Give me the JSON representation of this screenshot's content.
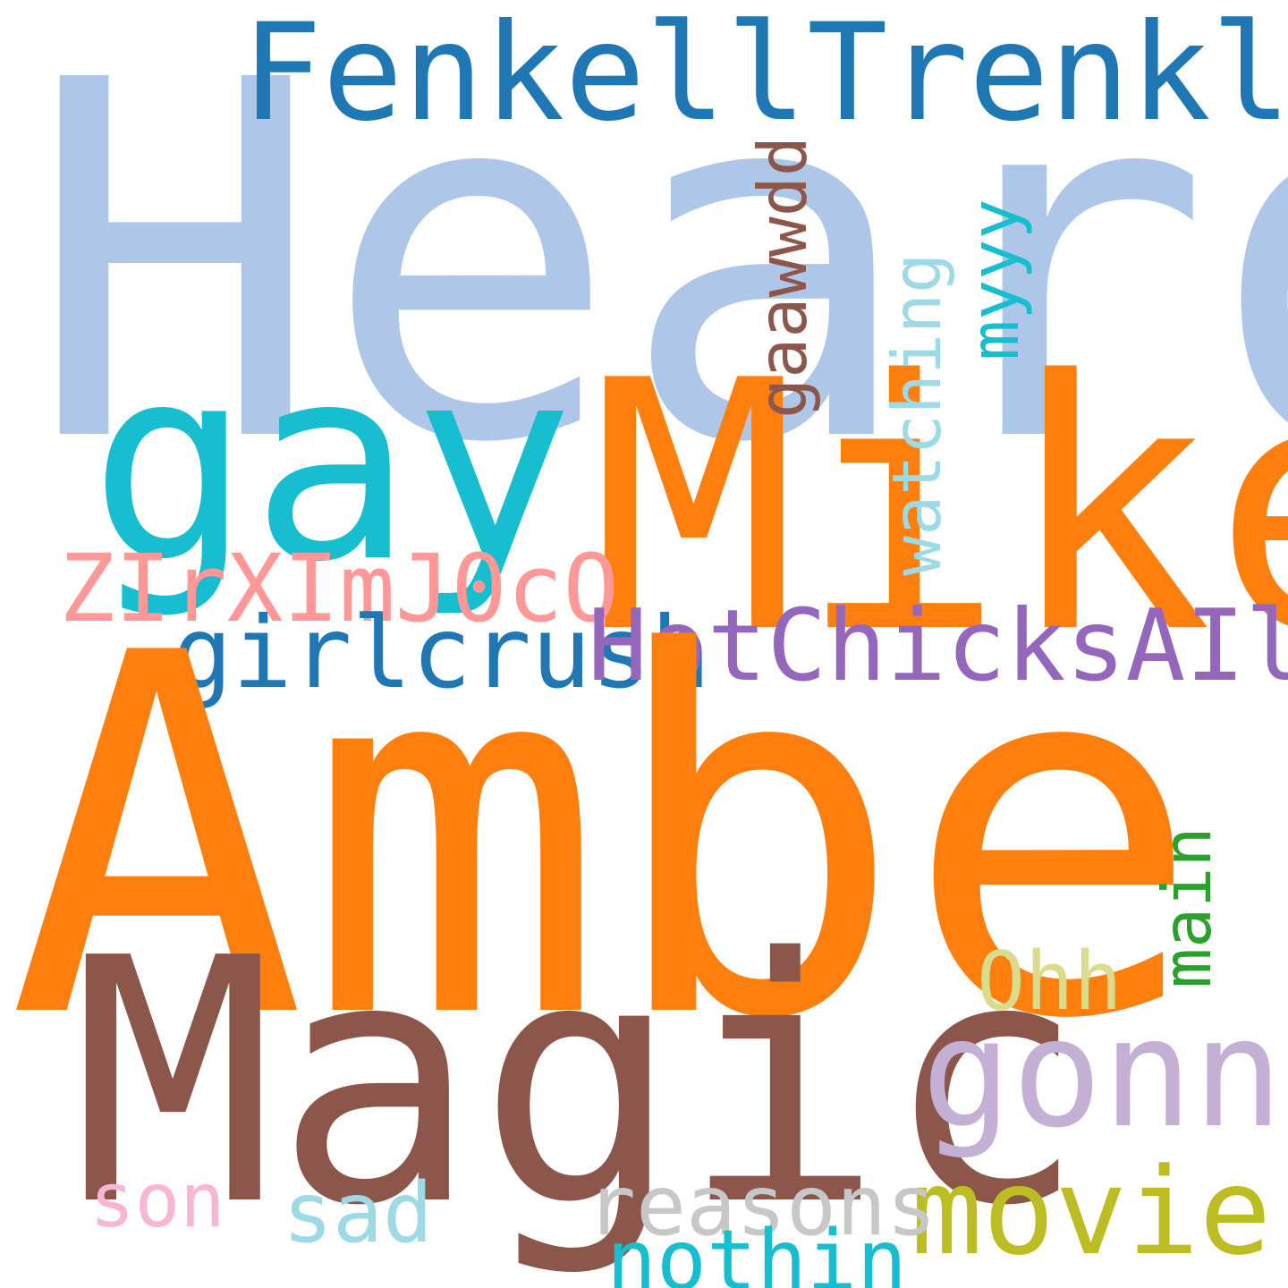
{
  "word_cloud": {
    "background": "#ffffff",
    "words": {
      "heard": {
        "text": "Heard",
        "color": "#aec7e8",
        "orientation": "horizontal"
      },
      "fenkell": {
        "text": "FenkellTrenkle",
        "color": "#1f77b4",
        "orientation": "horizontal"
      },
      "gay": {
        "text": "gay",
        "color": "#17becf",
        "orientation": "horizontal"
      },
      "mike": {
        "text": "Mike",
        "color": "#ff7f0e",
        "orientation": "horizontal"
      },
      "gaawwdd": {
        "text": "gaawwdd",
        "color": "#8c564b",
        "orientation": "vertical"
      },
      "watching": {
        "text": "watching",
        "color": "#9edae5",
        "orientation": "vertical"
      },
      "myyy": {
        "text": "myyy",
        "color": "#17becf",
        "orientation": "vertical"
      },
      "zirx": {
        "text": "ZIrXImJ0cO",
        "color": "#ff9896",
        "orientation": "horizontal"
      },
      "girlcrush": {
        "text": "girlcrush",
        "color": "#1f77b4",
        "orientation": "horizontal"
      },
      "hotchicks": {
        "text": "HotChicksAIlDay",
        "color": "#9467bd",
        "orientation": "horizontal"
      },
      "amber": {
        "text": "Amber",
        "color": "#ff7f0e",
        "orientation": "horizontal"
      },
      "magic": {
        "text": "Magic",
        "color": "#8c564b",
        "orientation": "horizontal"
      },
      "ohh": {
        "text": "Ohh",
        "color": "#dbdb8d",
        "orientation": "horizontal"
      },
      "main": {
        "text": "main",
        "color": "#2ca02c",
        "orientation": "vertical"
      },
      "gonna": {
        "text": "gonna",
        "color": "#c5b0d5",
        "orientation": "horizontal"
      },
      "movie": {
        "text": "movie",
        "color": "#bcbd22",
        "orientation": "horizontal"
      },
      "son": {
        "text": "son",
        "color": "#f7b6d2",
        "orientation": "horizontal"
      },
      "sad": {
        "text": "sad",
        "color": "#9edae5",
        "orientation": "horizontal"
      },
      "reasons": {
        "text": "reasons",
        "color": "#c7c7c7",
        "orientation": "horizontal"
      },
      "nothin": {
        "text": "nothin",
        "color": "#17becf",
        "orientation": "horizontal"
      }
    }
  }
}
